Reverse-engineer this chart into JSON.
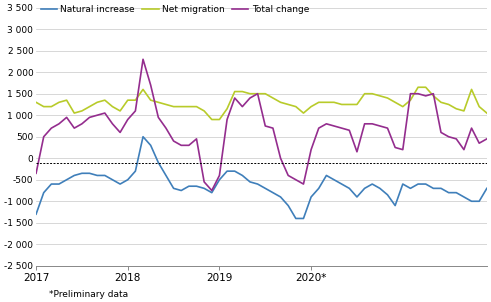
{
  "footnote": "*Preliminary data",
  "ylim": [
    -2500,
    3500
  ],
  "yticks": [
    -2500,
    -2000,
    -1500,
    -1000,
    -500,
    0,
    500,
    1000,
    1500,
    2000,
    2500,
    3000,
    3500
  ],
  "ytick_labels": [
    "-2 500",
    "-2 000",
    "-1 500",
    "-1 000",
    "-500",
    "0",
    "500",
    "1 000",
    "1 500",
    "2 000",
    "2 500",
    "3 000",
    "3 500"
  ],
  "hline_y": -100,
  "legend_labels": [
    "Natural increase",
    "Net migration",
    "Total change"
  ],
  "colors": {
    "natural": "#3f7fba",
    "migration": "#b8cb2a",
    "total": "#942d8e"
  },
  "natural_increase": [
    -1300,
    -800,
    -600,
    -600,
    -500,
    -400,
    -350,
    -350,
    -400,
    -400,
    -500,
    -600,
    -500,
    -300,
    500,
    300,
    -100,
    -400,
    -700,
    -750,
    -650,
    -650,
    -700,
    -800,
    -500,
    -300,
    -300,
    -400,
    -550,
    -600,
    -700,
    -800,
    -900,
    -1100,
    -1400,
    -1400,
    -900,
    -700,
    -400,
    -500,
    -600,
    -700,
    -900,
    -700,
    -600,
    -700,
    -850,
    -1100,
    -600,
    -700,
    -600,
    -600,
    -700,
    -700,
    -800,
    -800,
    -900,
    -1000,
    -1000,
    -700
  ],
  "net_migration": [
    1300,
    1200,
    1200,
    1300,
    1350,
    1050,
    1100,
    1200,
    1300,
    1350,
    1200,
    1100,
    1350,
    1350,
    1600,
    1350,
    1300,
    1250,
    1200,
    1200,
    1200,
    1200,
    1100,
    900,
    900,
    1150,
    1550,
    1550,
    1500,
    1500,
    1500,
    1400,
    1300,
    1250,
    1200,
    1050,
    1200,
    1300,
    1300,
    1300,
    1250,
    1250,
    1250,
    1500,
    1500,
    1450,
    1400,
    1300,
    1200,
    1350,
    1650,
    1650,
    1450,
    1300,
    1250,
    1150,
    1100,
    1600,
    1200,
    1050
  ],
  "total_change": [
    -350,
    500,
    700,
    800,
    950,
    700,
    800,
    950,
    1000,
    1050,
    800,
    600,
    900,
    1100,
    2300,
    1700,
    950,
    700,
    400,
    300,
    300,
    450,
    -550,
    -750,
    -400,
    900,
    1400,
    1200,
    1400,
    1500,
    750,
    700,
    0,
    -400,
    -500,
    -600,
    200,
    700,
    800,
    750,
    700,
    650,
    150,
    800,
    800,
    750,
    700,
    250,
    200,
    1500,
    1500,
    1450,
    1500,
    600,
    500,
    450,
    200,
    700,
    350,
    450
  ],
  "x_tick_positions": [
    0,
    12,
    24,
    36,
    48
  ],
  "x_tick_labels": [
    "2017",
    "2018",
    "2019",
    "2020*",
    ""
  ],
  "line_width": 1.2,
  "background_color": "#FFFFFF",
  "grid_color": "#C8C8C8"
}
